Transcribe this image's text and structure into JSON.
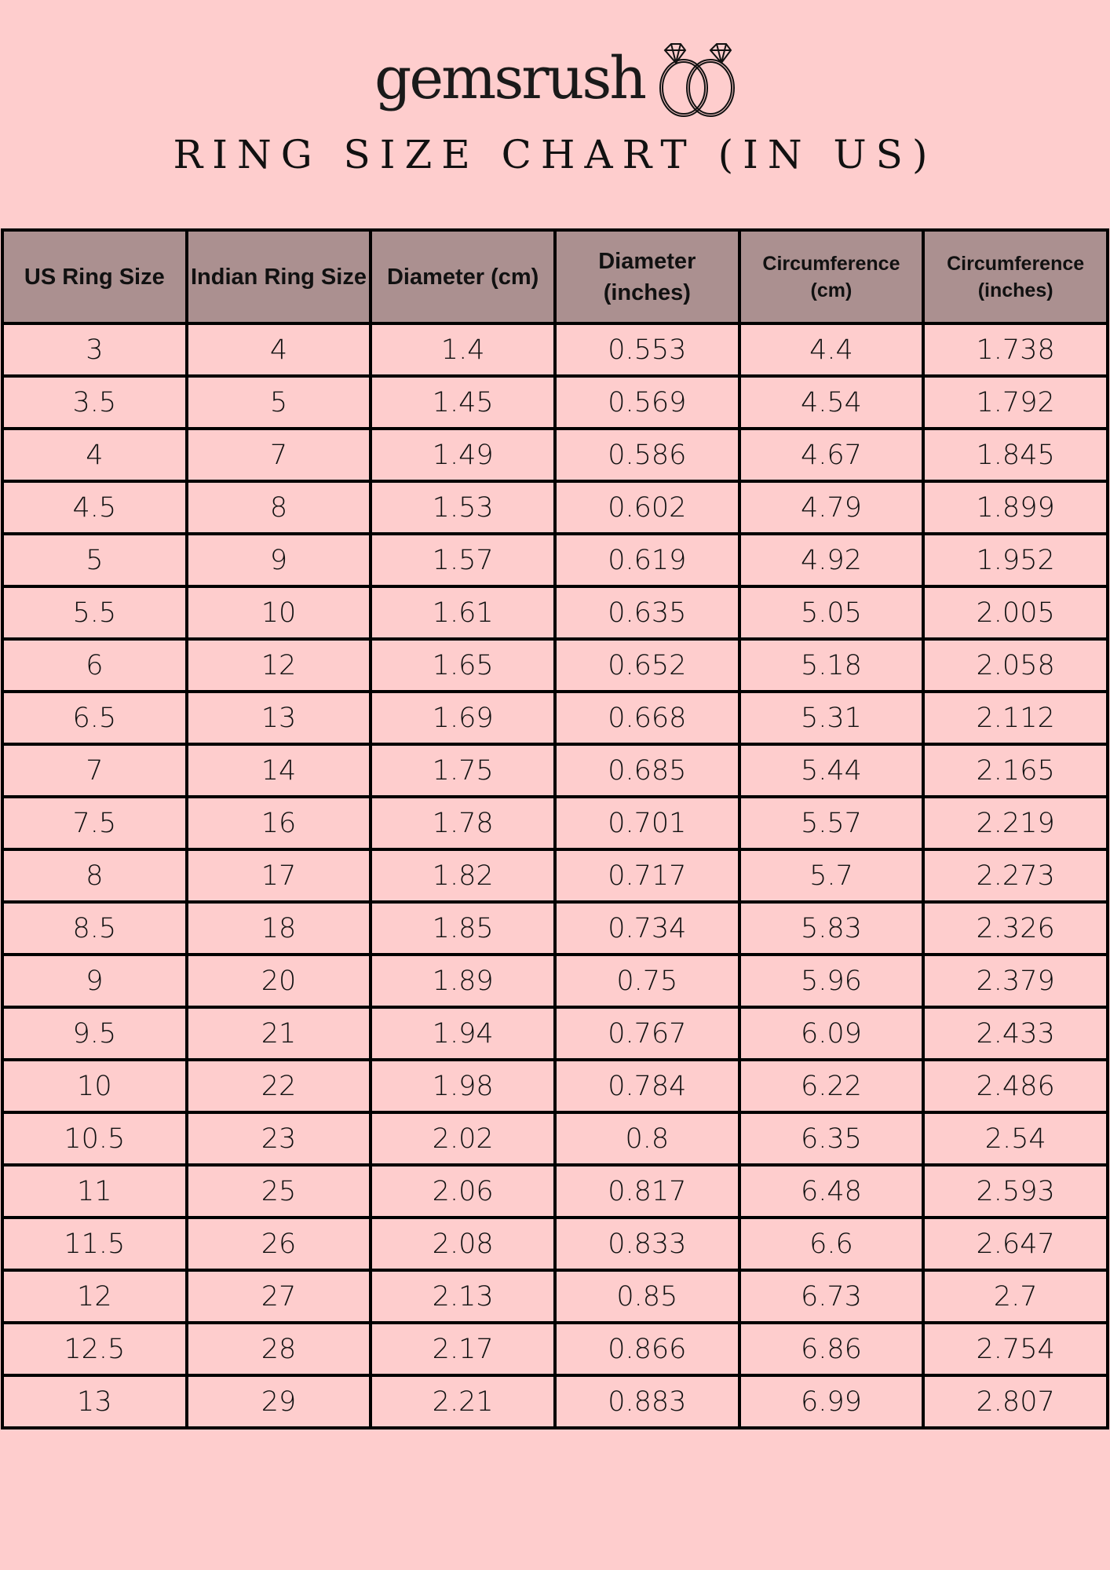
{
  "brand": {
    "logo_text": "gemsrush",
    "icon": "wedding-rings-icon"
  },
  "title": "RING SIZE CHART (IN US)",
  "colors": {
    "background": "#fecdcd",
    "header": "#ab9090",
    "border": "#000000"
  },
  "table": {
    "headers": [
      "US Ring Size",
      "Indian Ring Size",
      "Diameter (cm)",
      "Diameter (inches)",
      "Circumference (cm)",
      "Circumference (inches)"
    ],
    "rows": [
      [
        "3",
        "4",
        "1.4",
        "0.553",
        "4.4",
        "1.738"
      ],
      [
        "3.5",
        "5",
        "1.45",
        "0.569",
        "4.54",
        "1.792"
      ],
      [
        "4",
        "7",
        "1.49",
        "0.586",
        "4.67",
        "1.845"
      ],
      [
        "4.5",
        "8",
        "1.53",
        "0.602",
        "4.79",
        "1.899"
      ],
      [
        "5",
        "9",
        "1.57",
        "0.619",
        "4.92",
        "1.952"
      ],
      [
        "5.5",
        "10",
        "1.61",
        "0.635",
        "5.05",
        "2.005"
      ],
      [
        "6",
        "12",
        "1.65",
        "0.652",
        "5.18",
        "2.058"
      ],
      [
        "6.5",
        "13",
        "1.69",
        "0.668",
        "5.31",
        "2.112"
      ],
      [
        "7",
        "14",
        "1.75",
        "0.685",
        "5.44",
        "2.165"
      ],
      [
        "7.5",
        "16",
        "1.78",
        "0.701",
        "5.57",
        "2.219"
      ],
      [
        "8",
        "17",
        "1.82",
        "0.717",
        "5.7",
        "2.273"
      ],
      [
        "8.5",
        "18",
        "1.85",
        "0.734",
        "5.83",
        "2.326"
      ],
      [
        "9",
        "20",
        "1.89",
        "0.75",
        "5.96",
        "2.379"
      ],
      [
        "9.5",
        "21",
        "1.94",
        "0.767",
        "6.09",
        "2.433"
      ],
      [
        "10",
        "22",
        "1.98",
        "0.784",
        "6.22",
        "2.486"
      ],
      [
        "10.5",
        "23",
        "2.02",
        "0.8",
        "6.35",
        "2.54"
      ],
      [
        "11",
        "25",
        "2.06",
        "0.817",
        "6.48",
        "2.593"
      ],
      [
        "11.5",
        "26",
        "2.08",
        "0.833",
        "6.6",
        "2.647"
      ],
      [
        "12",
        "27",
        "2.13",
        "0.85",
        "6.73",
        "2.7"
      ],
      [
        "12.5",
        "28",
        "2.17",
        "0.866",
        "6.86",
        "2.754"
      ],
      [
        "13",
        "29",
        "2.21",
        "0.883",
        "6.99",
        "2.807"
      ]
    ]
  }
}
